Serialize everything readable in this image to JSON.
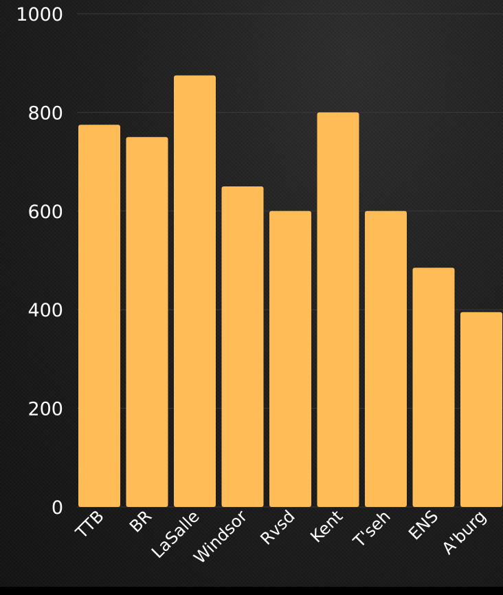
{
  "chart_data": {
    "type": "bar",
    "title": "",
    "xlabel": "",
    "ylabel": "",
    "categories": [
      "TTB",
      "BR",
      "LaSalle",
      "Windsor",
      "Rvsd",
      "Kent",
      "T'seh",
      "ENS",
      "A'burg"
    ],
    "values": [
      775,
      750,
      875,
      650,
      600,
      800,
      600,
      485,
      395
    ],
    "ylim": [
      0,
      1000
    ],
    "yticks": [
      0,
      200,
      400,
      600,
      800,
      1000
    ],
    "ytick_labels": [
      "0",
      "200",
      "400",
      "600",
      "800",
      "1000"
    ],
    "grid": true,
    "legend": "none",
    "colors": {
      "bar": "#FFBC57",
      "grid": "#3a3a3a",
      "text": "#ffffff",
      "background": "#1c1c1c"
    }
  }
}
